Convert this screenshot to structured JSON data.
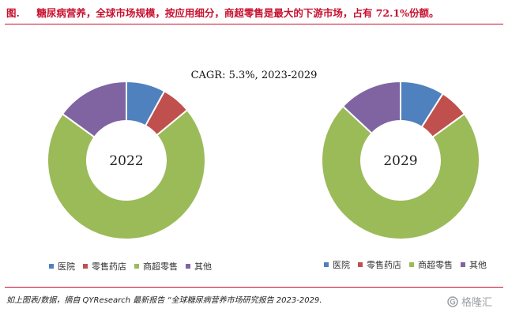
{
  "header": {
    "figure_label": "图.",
    "title": "糖尿病营养，全球市场规模，按应用细分，商超零售是最大的下游市场，占有 72.1%份额。"
  },
  "cagr_text": "CAGR: 5.3%, 2023-2029",
  "colors": {
    "医院": "#4e81bd",
    "零售药店": "#c0504e",
    "商超零售": "#9bbb59",
    "其他": "#8064a2",
    "accent": "#c8102e"
  },
  "chart_data": [
    {
      "type": "pie",
      "center_label": "2022",
      "categories": [
        "医院",
        "零售药店",
        "商超零售",
        "其他"
      ],
      "values": [
        0.08,
        0.06,
        0.71,
        0.15
      ],
      "legend_position": "bottom"
    },
    {
      "type": "pie",
      "center_label": "2029",
      "categories": [
        "医院",
        "零售药店",
        "商超零售",
        "其他"
      ],
      "values": [
        0.09,
        0.06,
        0.72,
        0.13
      ],
      "legend_position": "bottom"
    }
  ],
  "source_text": "如上图表/数据，摘自 QYResearch 最新报告 “全球糖尿病营养市场研究报告 2023-2029.",
  "watermark": {
    "icon": "gelonghui-logo-icon",
    "text": "格隆汇"
  }
}
